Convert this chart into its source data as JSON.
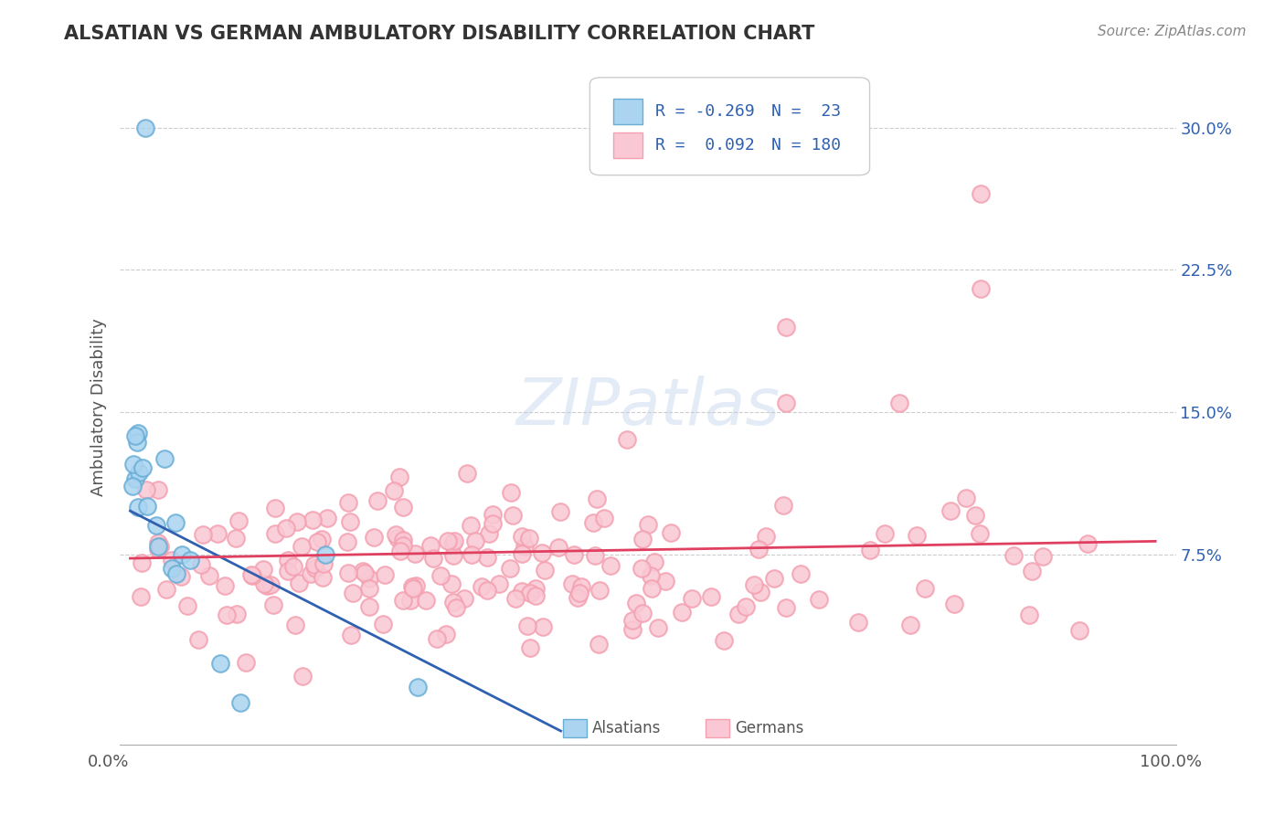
{
  "title": "ALSATIAN VS GERMAN AMBULATORY DISABILITY CORRELATION CHART",
  "source": "Source: ZipAtlas.com",
  "ylabel": "Ambulatory Disability",
  "yticks": [
    0.0,
    0.075,
    0.15,
    0.225,
    0.3
  ],
  "ytick_labels": [
    "",
    "7.5%",
    "15.0%",
    "22.5%",
    "30.0%"
  ],
  "xlim": [
    0.0,
    1.0
  ],
  "ylim": [
    -0.025,
    0.33
  ],
  "alsatian_face": "#aad4f0",
  "alsatian_edge": "#6aaed6",
  "german_face": "#f9c8d4",
  "german_edge": "#f4a0b0",
  "line_blue": "#3060b0",
  "line_pink": "#e04060",
  "watermark": "ZIPatlas",
  "background": "#ffffff",
  "grid_color": "#cccccc",
  "legend_text_color": "#3060b0",
  "title_color": "#333333",
  "source_color": "#888888",
  "label_color": "#555555"
}
